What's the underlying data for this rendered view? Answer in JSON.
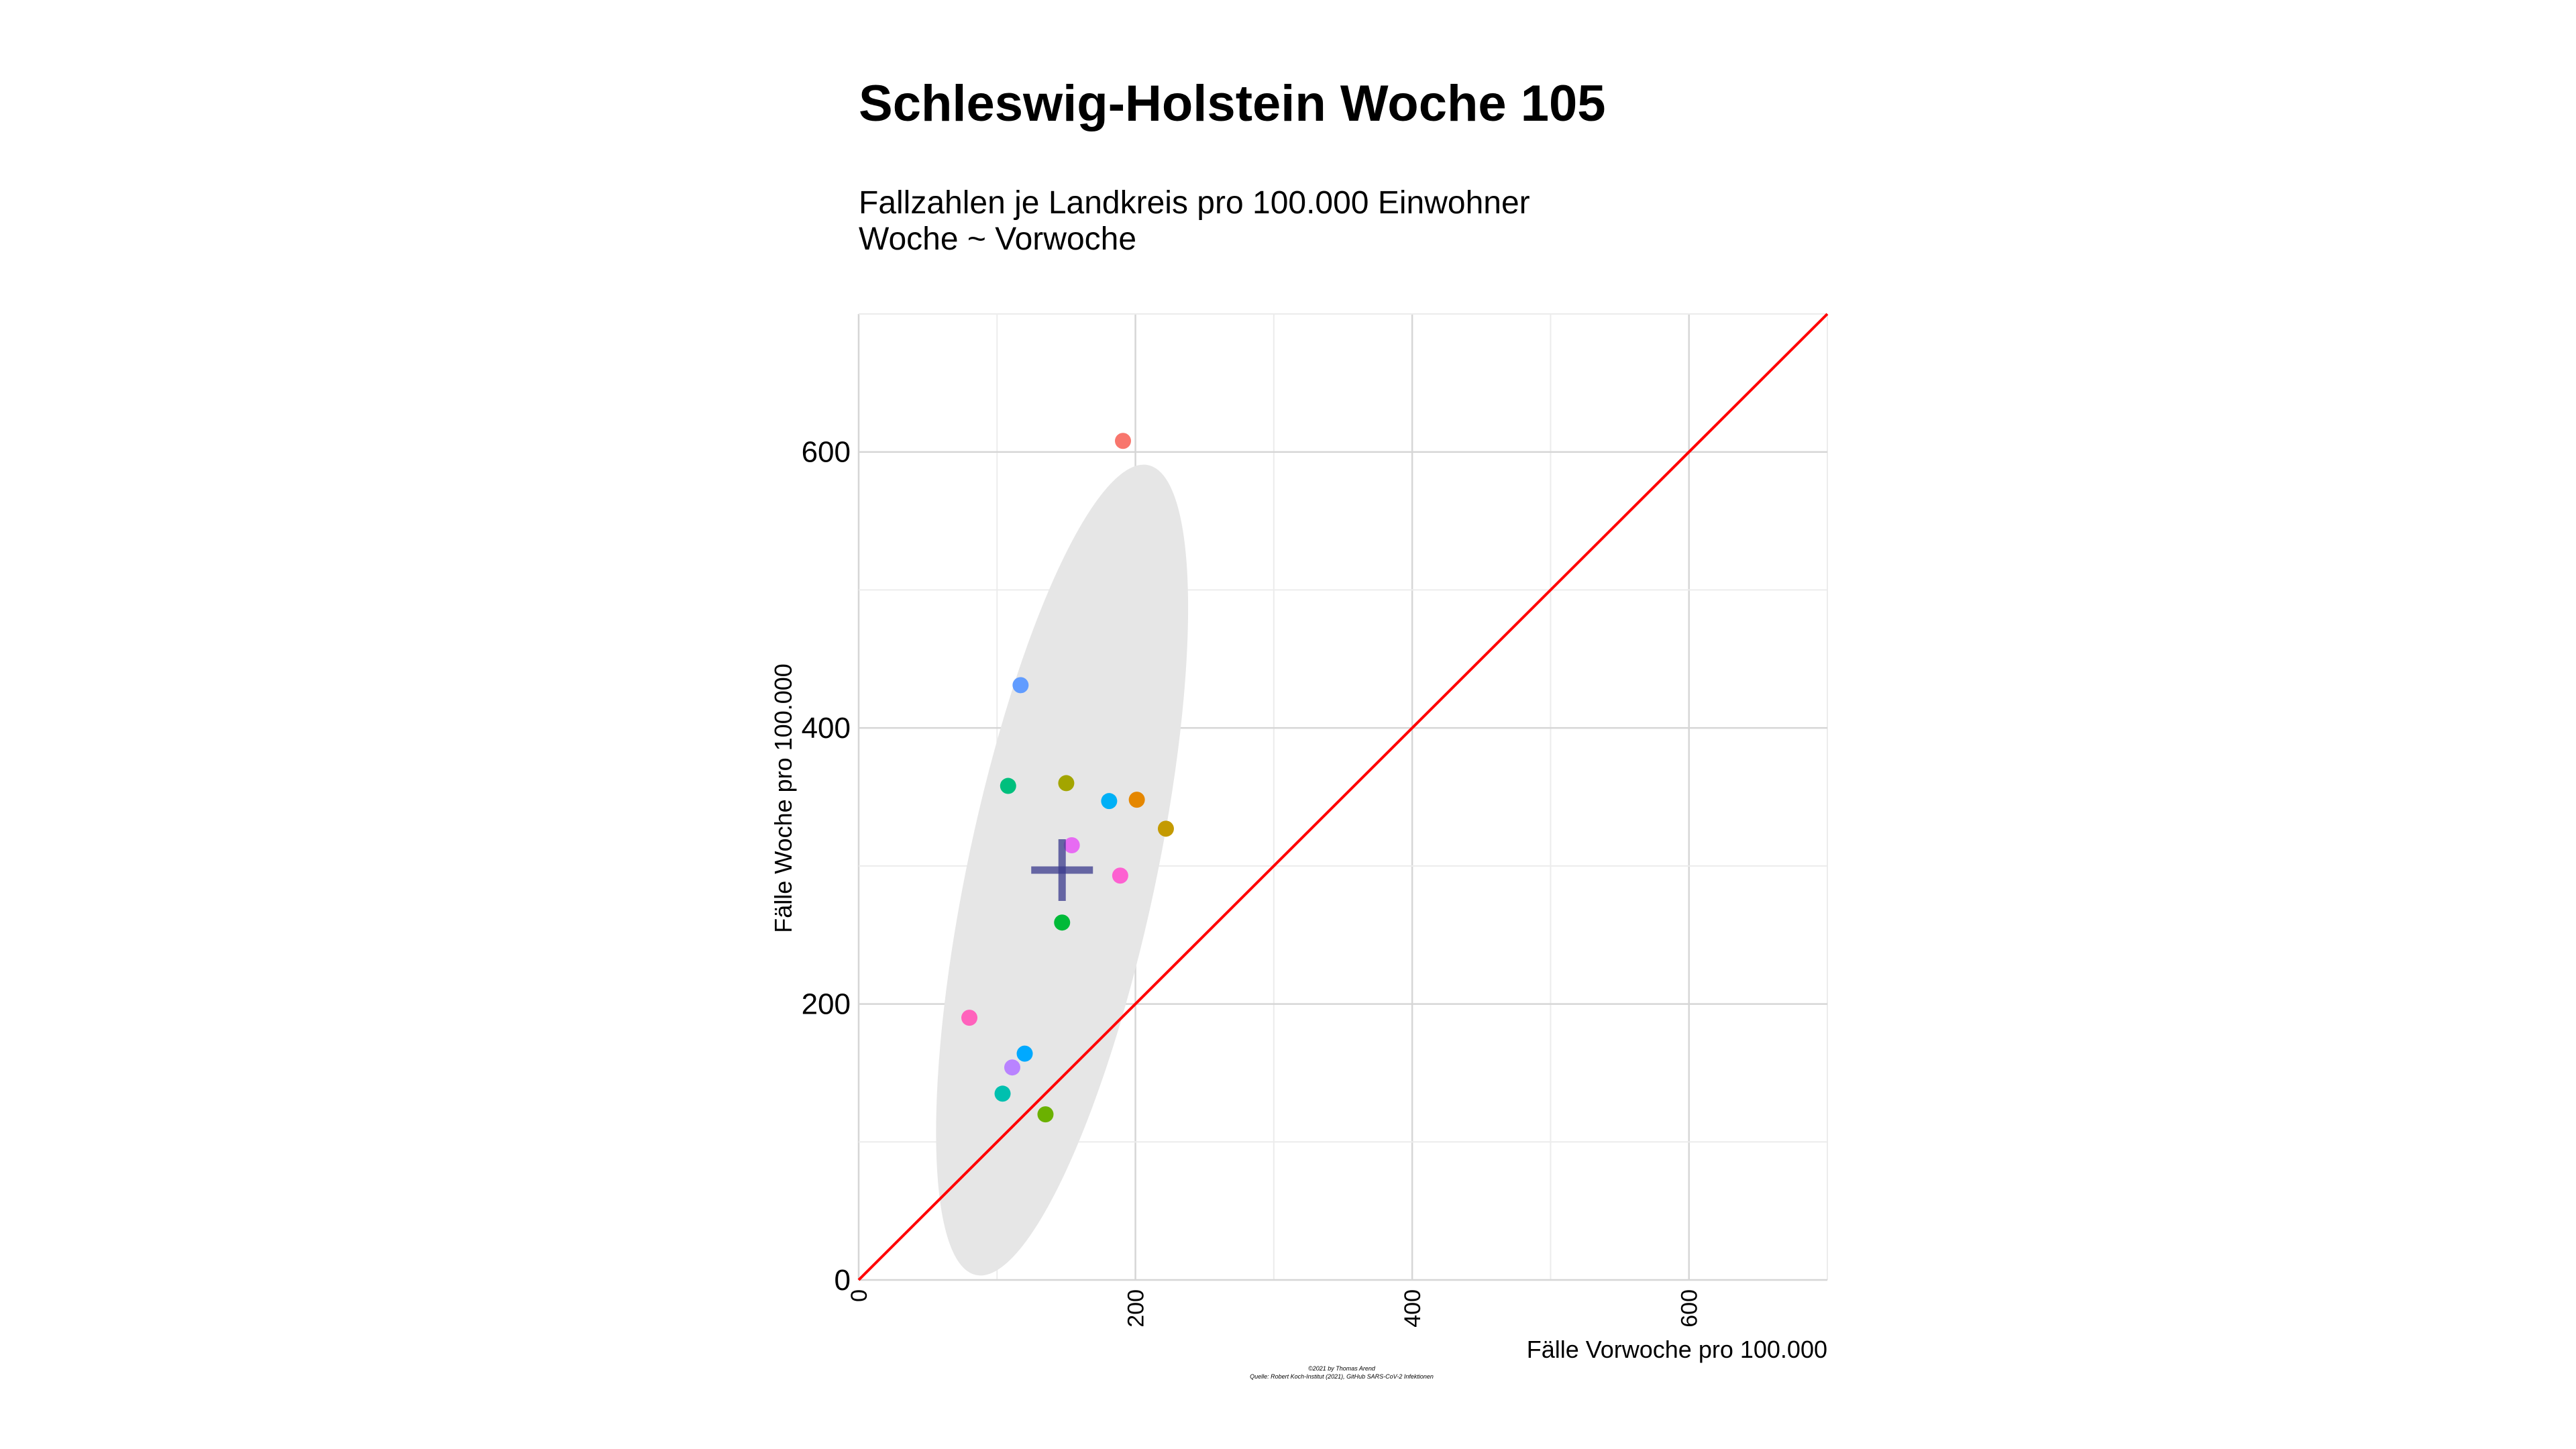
{
  "chart_data": {
    "type": "scatter",
    "title": "Schleswig-Holstein Woche 105",
    "subtitle_lines": [
      "Fallzahlen je Landkreis pro 100.000 Einwohner",
      "Woche ~ Vorwoche"
    ],
    "xlabel": "Fälle Vorwoche pro 100.000",
    "ylabel": "Fälle Woche pro 100.000",
    "xlim": [
      0,
      700
    ],
    "ylim": [
      0,
      700
    ],
    "xticks": [
      0,
      200,
      400,
      600
    ],
    "yticks": [
      0,
      200,
      400,
      600
    ],
    "grid": true,
    "reference_line": {
      "type": "y=x",
      "color": "#ff0000"
    },
    "mean": {
      "x": 147,
      "y": 297,
      "color": "#3a3a8c"
    },
    "ellipse": {
      "cx": 147,
      "cy": 297,
      "rx_data": 68,
      "ry_data": 300,
      "rotate_deg": 12,
      "fill": "#e6e6e6"
    },
    "points": [
      {
        "x": 191,
        "y": 608,
        "color": "#f8766d"
      },
      {
        "x": 117,
        "y": 431,
        "color": "#619cff"
      },
      {
        "x": 108,
        "y": 358,
        "color": "#00bf7d"
      },
      {
        "x": 150,
        "y": 360,
        "color": "#a3a500"
      },
      {
        "x": 181,
        "y": 347,
        "color": "#00b0f6"
      },
      {
        "x": 201,
        "y": 348,
        "color": "#e58700"
      },
      {
        "x": 222,
        "y": 327,
        "color": "#c49a00"
      },
      {
        "x": 154,
        "y": 315,
        "color": "#e76bf3"
      },
      {
        "x": 189,
        "y": 293,
        "color": "#fd61d1"
      },
      {
        "x": 147,
        "y": 259,
        "color": "#00ba38"
      },
      {
        "x": 80,
        "y": 190,
        "color": "#ff62bc"
      },
      {
        "x": 120,
        "y": 164,
        "color": "#00a9ff"
      },
      {
        "x": 111,
        "y": 154,
        "color": "#b983ff"
      },
      {
        "x": 104,
        "y": 135,
        "color": "#00c0af"
      },
      {
        "x": 135,
        "y": 120,
        "color": "#6bb100"
      }
    ]
  },
  "caption_lines": [
    "©2021 by Thomas Arend",
    "Quelle: Robert Koch-Institut (2021), GitHub SARS-CoV-2 Infektionen"
  ]
}
